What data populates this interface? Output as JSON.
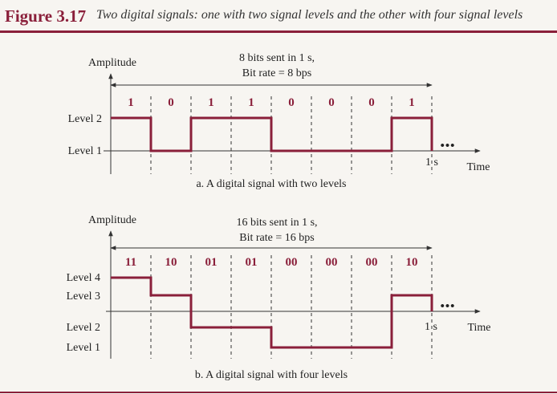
{
  "figure": {
    "label": "Figure 3.17",
    "caption": "Two digital signals: one with two signal levels and the other with four signal levels",
    "accent_color": "#8a1f3a"
  },
  "panel_a": {
    "y_axis_label": "Amplitude",
    "summary_line1": "8 bits sent in 1 s,",
    "summary_line2": "Bit rate = 8 bps",
    "bits": [
      "1",
      "0",
      "1",
      "1",
      "0",
      "0",
      "0",
      "1"
    ],
    "levels": [
      "Level 2",
      "Level 1"
    ],
    "signal_levels": [
      2,
      1,
      2,
      2,
      1,
      1,
      1,
      2
    ],
    "time_tick": "1 s",
    "x_axis_label": "Time",
    "continuation": "•••",
    "caption": "a. A digital signal with two levels"
  },
  "panel_b": {
    "y_axis_label": "Amplitude",
    "summary_line1": "16 bits sent in 1 s,",
    "summary_line2": "Bit rate = 16 bps",
    "bits": [
      "11",
      "10",
      "01",
      "01",
      "00",
      "00",
      "00",
      "10"
    ],
    "levels": [
      "Level 4",
      "Level 3",
      "Level 2",
      "Level 1"
    ],
    "signal_levels": [
      4,
      3,
      2,
      2,
      1,
      1,
      1,
      3
    ],
    "time_tick": "1 s",
    "x_axis_label": "Time",
    "continuation": "•••",
    "caption": "b. A digital signal with four levels"
  }
}
